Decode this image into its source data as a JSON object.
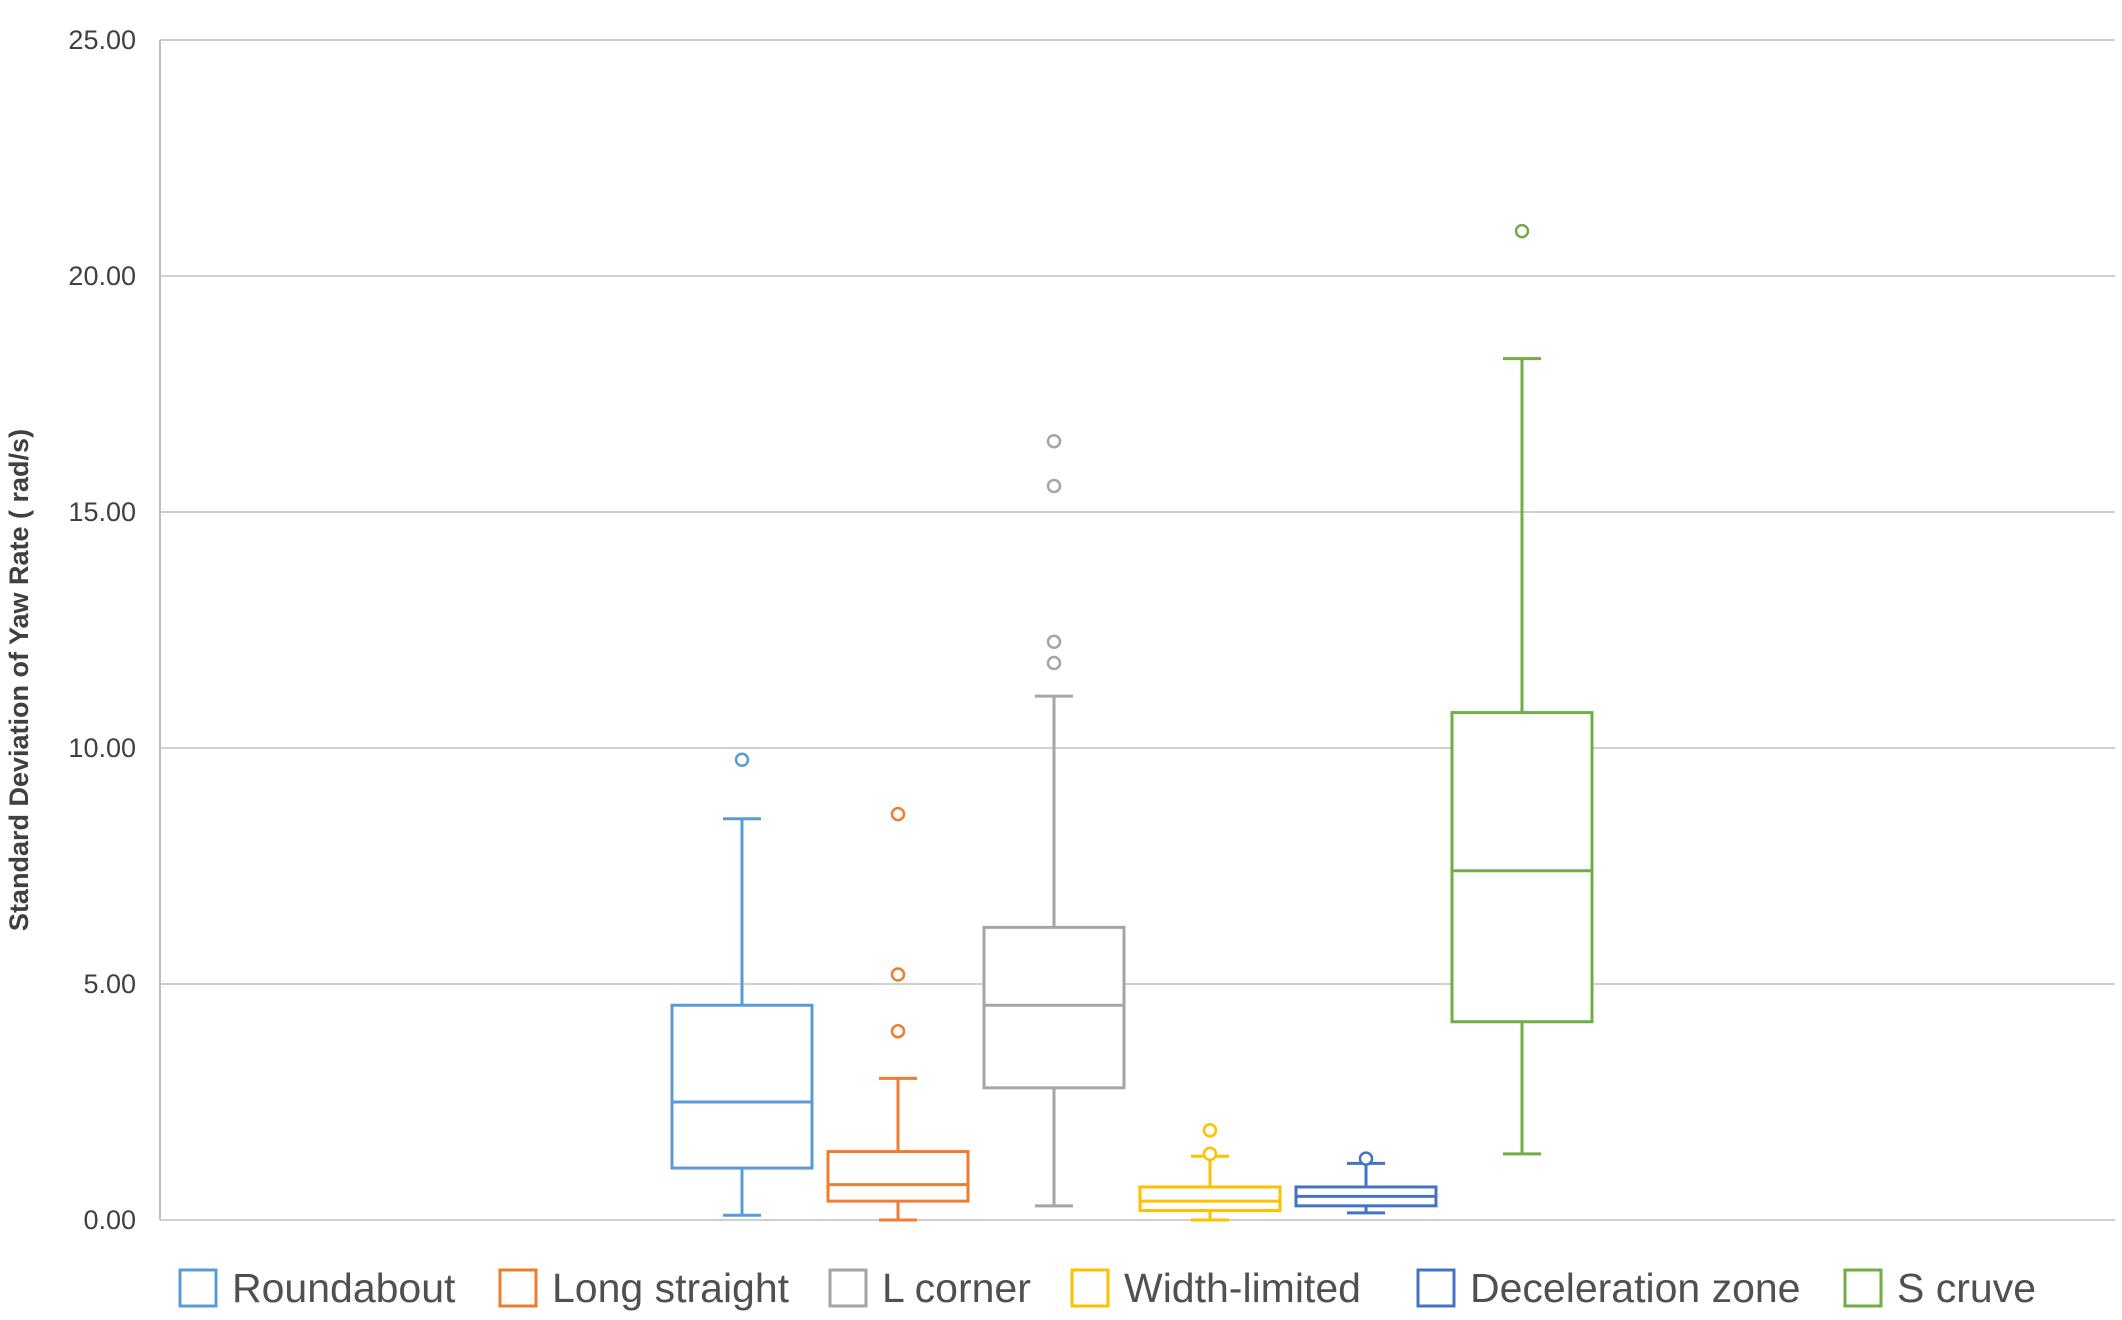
{
  "chart_data": {
    "type": "box",
    "title": "",
    "xlabel": "",
    "ylabel": "Standard Deviation of Yaw Rate ( rad/s)",
    "ylim": [
      0,
      25
    ],
    "yticks": [
      0,
      5,
      10,
      15,
      20,
      25
    ],
    "ytick_labels": [
      "0.00",
      "5.00",
      "10.00",
      "15.00",
      "20.00",
      "25.00"
    ],
    "grid": true,
    "legend_position": "bottom",
    "series": [
      {
        "name": "Roundabout",
        "color": "#5b9bd5",
        "whisker_low": 0.1,
        "q1": 1.1,
        "median": 2.5,
        "q3": 4.55,
        "whisker_high": 8.5,
        "outliers": [
          9.75
        ]
      },
      {
        "name": "Long straight",
        "color": "#ed7d31",
        "whisker_low": 0.0,
        "q1": 0.4,
        "median": 0.75,
        "q3": 1.45,
        "whisker_high": 3.0,
        "outliers": [
          4.0,
          5.2,
          8.6
        ]
      },
      {
        "name": "L corner",
        "color": "#a5a5a5",
        "whisker_low": 0.3,
        "q1": 2.8,
        "median": 4.55,
        "q3": 6.2,
        "whisker_high": 11.1,
        "outliers": [
          11.8,
          12.25,
          15.55,
          16.5
        ]
      },
      {
        "name": "Width-limited",
        "color": "#ffc000",
        "whisker_low": 0.0,
        "q1": 0.2,
        "median": 0.4,
        "q3": 0.7,
        "whisker_high": 1.35,
        "outliers": [
          1.4,
          1.9
        ]
      },
      {
        "name": "Deceleration zone",
        "color": "#4472c4",
        "whisker_low": 0.15,
        "q1": 0.3,
        "median": 0.5,
        "q3": 0.7,
        "whisker_high": 1.2,
        "outliers": [
          1.3
        ]
      },
      {
        "name": "S cruve",
        "color": "#70ad47",
        "whisker_low": 1.4,
        "q1": 4.2,
        "median": 7.4,
        "q3": 10.75,
        "whisker_high": 18.25,
        "outliers": [
          20.95
        ]
      }
    ]
  }
}
